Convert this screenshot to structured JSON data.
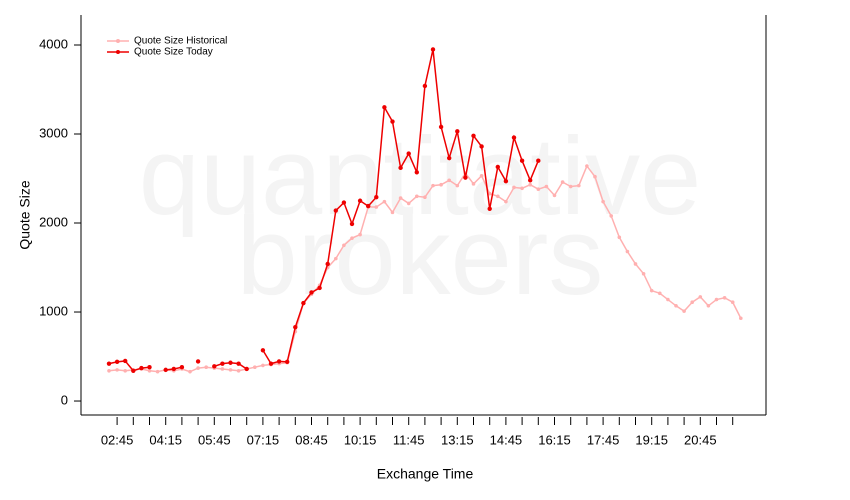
{
  "chart_data": {
    "type": "line",
    "watermark": [
      "quantitative",
      "brokers"
    ],
    "x_label": "Exchange Time",
    "y_label": "Quote Size",
    "categories": [
      null,
      "02:45",
      null,
      null,
      null,
      null,
      null,
      "04:15",
      null,
      null,
      null,
      null,
      null,
      "05:45",
      null,
      null,
      null,
      null,
      null,
      "07:15",
      null,
      null,
      null,
      null,
      null,
      "08:45",
      null,
      null,
      null,
      null,
      null,
      "10:15",
      null,
      null,
      null,
      null,
      null,
      "11:45",
      null,
      null,
      null,
      null,
      null,
      "13:15",
      null,
      null,
      null,
      null,
      null,
      "14:45",
      null,
      null,
      null,
      null,
      null,
      "16:15",
      null,
      null,
      null,
      null,
      null,
      "17:45",
      null,
      null,
      null,
      null,
      null,
      "19:15",
      null,
      null,
      null,
      null,
      null,
      "20:45",
      null,
      null,
      null,
      null,
      null
    ],
    "series": [
      {
        "name": "Quote Size Historical",
        "color": "#ffb0b0",
        "values": [
          340,
          350,
          340,
          350,
          360,
          340,
          330,
          350,
          340,
          360,
          330,
          370,
          380,
          370,
          360,
          350,
          340,
          360,
          380,
          400,
          410,
          420,
          430,
          780,
          1100,
          1200,
          1300,
          1500,
          1600,
          1750,
          1830,
          1870,
          2180,
          2180,
          2240,
          2120,
          2280,
          2220,
          2300,
          2290,
          2420,
          2430,
          2480,
          2420,
          2560,
          2440,
          2530,
          2330,
          2300,
          2240,
          2400,
          2390,
          2430,
          2380,
          2410,
          2310,
          2460,
          2410,
          2420,
          2640,
          2520,
          2240,
          2080,
          1840,
          1680,
          1540,
          1430,
          1240,
          1210,
          1140,
          1070,
          1010,
          1110,
          1170,
          1070,
          1140,
          1160,
          1110,
          930
        ]
      },
      {
        "name": "Quote Size Today",
        "color": "#ee0000",
        "values": [
          420,
          440,
          450,
          340,
          370,
          380,
          null,
          350,
          360,
          380,
          null,
          445,
          null,
          390,
          420,
          430,
          420,
          360,
          null,
          570,
          420,
          445,
          440,
          830,
          1100,
          1220,
          1270,
          1540,
          2140,
          2230,
          1990,
          2250,
          2190,
          2290,
          3300,
          3140,
          2620,
          2780,
          2570,
          3540,
          3950,
          3080,
          2730,
          3030,
          2510,
          2980,
          2860,
          2160,
          2630,
          2470,
          2960,
          2700,
          2480,
          2700,
          null,
          null,
          null,
          null,
          null,
          null,
          null,
          null,
          null,
          null,
          null,
          null,
          null,
          null,
          null,
          null,
          null,
          null,
          null,
          null,
          null,
          null,
          null,
          null,
          null
        ]
      }
    ],
    "ylim": [
      -157,
      4337
    ],
    "yticks": [
      0,
      1000,
      2000,
      3000,
      4000
    ],
    "legend": "upper-left",
    "grid": false
  }
}
